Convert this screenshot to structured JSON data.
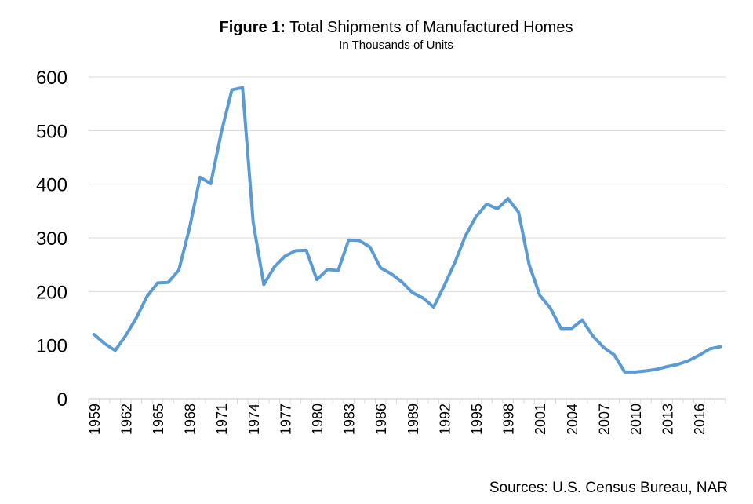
{
  "chart_data": {
    "type": "line",
    "title_prefix": "Figure 1:",
    "title": "Total Shipments of Manufactured Homes",
    "subtitle": "In Thousands of Units",
    "source": "Sources: U.S. Census Bureau, NAR",
    "xlabel": "",
    "ylabel": "",
    "ylim": [
      0,
      600
    ],
    "yticks": [
      "0",
      "100",
      "200",
      "300",
      "400",
      "500",
      "600"
    ],
    "xlim": [
      1959,
      2018
    ],
    "xticks": [
      "1959",
      "1962",
      "1965",
      "1968",
      "1971",
      "1974",
      "1977",
      "1980",
      "1983",
      "1986",
      "1989",
      "1992",
      "1995",
      "1998",
      "2001",
      "2004",
      "2007",
      "2010",
      "2013",
      "2016"
    ],
    "grid": true,
    "line_color": "#5b9bd5",
    "grid_color": "#d9d9d9",
    "series": [
      {
        "x": [
          1959,
          1960,
          1961,
          1962,
          1963,
          1964,
          1965,
          1966,
          1967,
          1968,
          1969,
          1970,
          1971,
          1972,
          1973,
          1974,
          1975,
          1976,
          1977,
          1978,
          1979,
          1980,
          1981,
          1982,
          1983,
          1984,
          1985,
          1986,
          1987,
          1988,
          1989,
          1990,
          1991,
          1992,
          1993,
          1994,
          1995,
          1996,
          1997,
          1998,
          1999,
          2000,
          2001,
          2002,
          2003,
          2004,
          2005,
          2006,
          2007,
          2008,
          2009,
          2010,
          2011,
          2012,
          2013,
          2014,
          2015,
          2016,
          2017,
          2018
        ],
        "values": [
          120,
          103,
          90,
          118,
          151,
          191,
          216,
          217,
          240,
          318,
          413,
          401,
          497,
          576,
          580,
          329,
          213,
          246,
          266,
          276,
          277,
          222,
          241,
          239,
          296,
          295,
          283,
          244,
          233,
          218,
          198,
          188,
          171,
          211,
          254,
          304,
          340,
          363,
          354,
          373,
          348,
          250,
          193,
          169,
          131,
          131,
          147,
          117,
          96,
          82,
          50,
          50,
          52,
          55,
          60,
          64,
          71,
          81,
          93,
          97
        ]
      }
    ]
  }
}
